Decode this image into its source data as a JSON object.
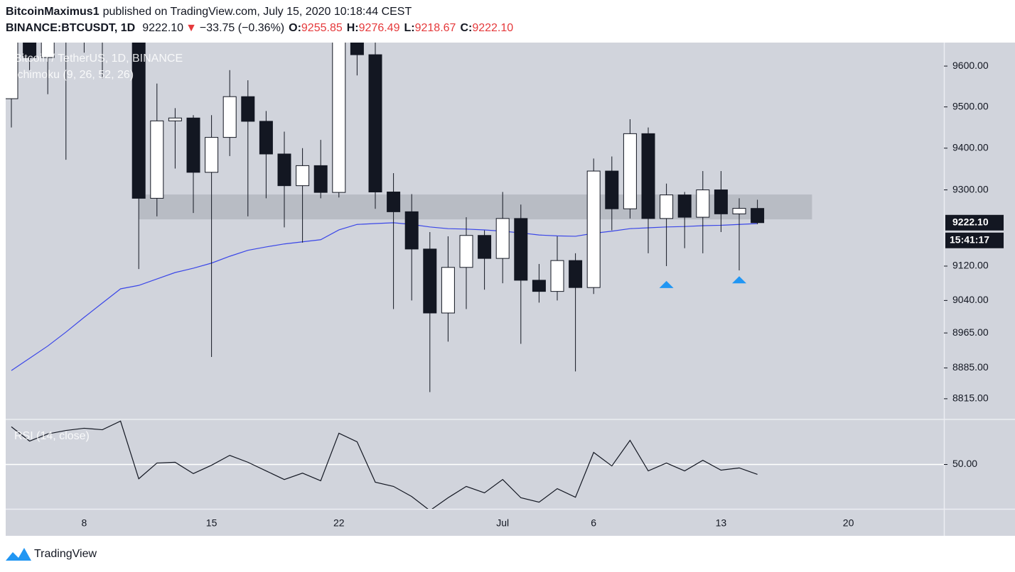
{
  "header": {
    "author": "BitcoinMaximus1",
    "published": "published on TradingView.com, July 15, 2020 10:18:44 CEST",
    "symbol": "BINANCE:BTCUSDT, 1D",
    "last": "9222.10",
    "arrow": "▼",
    "change": "−33.75 (−0.36%)",
    "ohlc": [
      {
        "key": "O:",
        "value": "9255.85"
      },
      {
        "key": "H:",
        "value": "9276.49"
      },
      {
        "key": "L:",
        "value": "9218.67"
      },
      {
        "key": "C:",
        "value": "9222.10"
      }
    ]
  },
  "countdown": "15:41:17",
  "footer": "TradingView",
  "chart_data": [
    {
      "type": "candlestick",
      "title": "Bitcoin / TetherUS, 1D, BINANCE",
      "log": true,
      "categories": [
        null,
        null,
        null,
        null,
        "8",
        null,
        null,
        null,
        null,
        null,
        null,
        "15",
        null,
        null,
        null,
        null,
        null,
        null,
        "22",
        null,
        null,
        null,
        null,
        null,
        null,
        null,
        null,
        "Jul",
        null,
        null,
        null,
        null,
        "6",
        null,
        null,
        null,
        null,
        null,
        null,
        "13",
        null,
        null,
        null,
        null,
        null,
        null,
        "20",
        null,
        null,
        null,
        null,
        null
      ],
      "open": [
        9520,
        9790,
        9621,
        9666,
        9746,
        9782,
        9772,
        9885,
        9280,
        9466,
        9473,
        9342,
        9426,
        9525,
        9465,
        9386,
        9310,
        9358,
        9294,
        9685,
        9628,
        9295,
        9248,
        9160,
        9011,
        9117,
        9192,
        9138,
        9232,
        9087,
        9061,
        9133,
        9070,
        9345,
        9255,
        9435,
        9232,
        9288,
        9235,
        9300,
        9243,
        9255.85,
        null,
        null,
        null,
        null,
        null,
        null,
        null,
        null,
        null,
        null
      ],
      "high": [
        9881,
        9845,
        9735,
        9802,
        9800,
        9877,
        9992,
        9964,
        9557,
        9497,
        9480,
        9480,
        9590,
        9565,
        9490,
        9440,
        9400,
        9420,
        9780,
        9720,
        9660,
        9340,
        9290,
        9200,
        9190,
        9235,
        9204,
        9295,
        9265,
        9125,
        9190,
        9150,
        9375,
        9380,
        9470,
        9450,
        9315,
        9295,
        9345,
        9345,
        9280,
        9276.49,
        null,
        null,
        null,
        null,
        null,
        null,
        null,
        null,
        null,
        null
      ],
      "low": [
        9450,
        9590,
        9531,
        9372,
        9633,
        9570,
        9704,
        9113,
        9237,
        9351,
        9245,
        8910,
        9381,
        9237,
        9280,
        9211,
        9175,
        9280,
        9282,
        9577,
        9255,
        9020,
        9040,
        8830,
        8945,
        9020,
        9065,
        9080,
        8940,
        9035,
        9040,
        8877,
        9055,
        9204,
        9232,
        9150,
        9120,
        9162,
        9150,
        9200,
        9110,
        9218.67,
        null,
        null,
        null,
        null,
        null,
        null,
        null,
        null,
        null,
        null
      ],
      "close": [
        9790,
        9621,
        9666,
        9746,
        9782,
        9772,
        9885,
        9280,
        9466,
        9473,
        9342,
        9426,
        9525,
        9465,
        9386,
        9310,
        9358,
        9294,
        9685,
        9628,
        9295,
        9248,
        9160,
        9011,
        9117,
        9192,
        9138,
        9232,
        9087,
        9061,
        9133,
        9070,
        9345,
        9255,
        9435,
        9232,
        9288,
        9235,
        9300,
        9243,
        9256,
        9222.1,
        null,
        null,
        null,
        null,
        null,
        null,
        null,
        null,
        null,
        null
      ],
      "up_color": "#ffffff",
      "down_color": "#131722",
      "series": [
        {
          "name": "Ichimoku (9, 26, 52, 26)",
          "color": "#3b47e8",
          "values": [
            8879,
            8907,
            8935,
            8967,
            9001,
            9034,
            9067,
            9075,
            9090,
            9105,
            9115,
            9127,
            9143,
            9157,
            9165,
            9172,
            9177,
            9182,
            9205,
            9218,
            9220,
            9222,
            9218,
            9212,
            9208,
            9207,
            9205,
            9202,
            9198,
            9193,
            9191,
            9190,
            9197,
            9202,
            9208,
            9210,
            9212,
            9213,
            9215,
            9216,
            9218,
            9220,
            null,
            null,
            null,
            null,
            null,
            null,
            null,
            null,
            null,
            null
          ]
        }
      ],
      "zone": {
        "y": [
          9230,
          9289
        ],
        "x": [
          7,
          44
        ],
        "color": "#b2b5be"
      },
      "markers": [
        {
          "index": 36,
          "value": 9077
        },
        {
          "index": 40,
          "value": 9088
        }
      ],
      "marker_color": "#2196f3",
      "ylim": [
        8770,
        9658
      ],
      "yticks": [
        {
          "value": 9600,
          "label": "9600.00"
        },
        {
          "value": 9500,
          "label": "9500.00"
        },
        {
          "value": 9400,
          "label": "9400.00"
        },
        {
          "value": 9300,
          "label": "9300.00"
        },
        {
          "value": 9120,
          "label": "9120.00"
        },
        {
          "value": 9040,
          "label": "9040.00"
        },
        {
          "value": 8965,
          "label": "8965.00"
        },
        {
          "value": 8885,
          "label": "8885.00"
        },
        {
          "value": 8815,
          "label": "8815.00"
        }
      ],
      "grid": false
    },
    {
      "type": "line",
      "grid": true,
      "series": [
        {
          "name": "RSI (14, close)",
          "color": "#131722",
          "values": [
            65.3,
            59.5,
            62.4,
            63.8,
            64.7,
            64.1,
            67.6,
            44.2,
            50.6,
            50.9,
            46.3,
            49.7,
            53.7,
            50.9,
            47.4,
            43.9,
            46.5,
            43.4,
            62.7,
            59.2,
            42.8,
            41.1,
            37.0,
            31.3,
            36.5,
            41.1,
            38.5,
            43.9,
            36.5,
            34.7,
            40.2,
            36.7,
            54.9,
            49.4,
            59.8,
            47.4,
            50.6,
            47.4,
            51.7,
            47.7,
            48.6,
            46.0,
            null,
            null,
            null,
            null,
            null,
            null,
            null,
            null,
            null,
            null
          ]
        }
      ],
      "ylim": [
        32,
        68
      ],
      "yticks": [
        {
          "value": 50,
          "label": "50.00"
        }
      ]
    }
  ]
}
